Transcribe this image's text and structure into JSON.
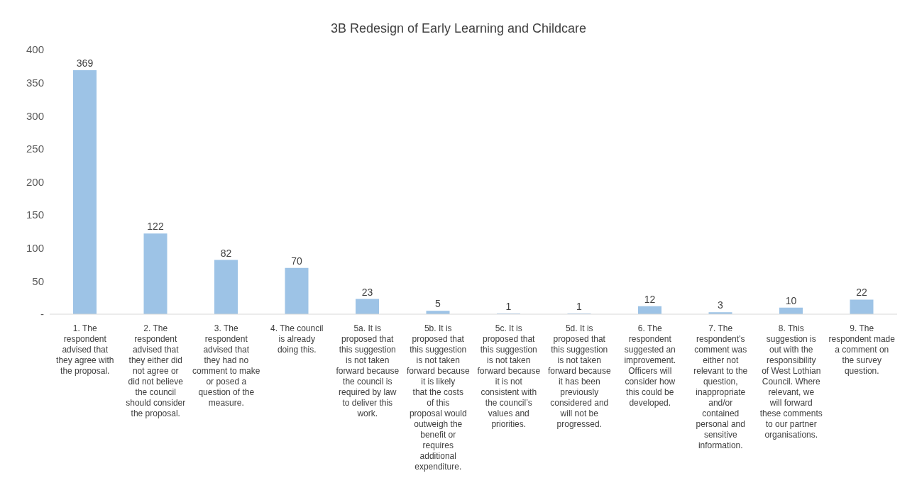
{
  "chart_data": {
    "type": "bar",
    "title": "3B Redesign of Early Learning and Childcare",
    "categories": [
      "1. The respondent advised that they agree with the proposal.",
      "2. The respondent advised that they either did not agree or did not believe the council should consider the proposal.",
      "3. The respondent advised that they had no comment to make or posed a question of the measure.",
      "4. The council is already doing this.",
      "5a. It is proposed that this suggestion is not taken forward because the council is required by law to deliver this work.",
      "5b. It is proposed that this suggestion is not taken forward because it is likely that the costs of this proposal would outweigh the benefit or requires additional expenditure.",
      "5c. It is proposed that this suggestion is not taken forward because it is not consistent with the council’s values and priorities.",
      "5d. It is proposed that this suggestion is not taken forward because it has been previously considered and will not be progressed.",
      "6. The respondent suggested an improvement. Officers will consider how this could be developed.",
      "7. The respondent's comment was either not relevant to the question, inappropriate and/or contained personal and sensitive information.",
      "8. This suggestion is out with the responsibility of West Lothian Council. Where relevant, we will forward these comments to our partner organisations.",
      "9. The respondent made a comment on the survey question."
    ],
    "values": [
      369,
      122,
      82,
      70,
      23,
      5,
      1,
      1,
      12,
      3,
      10,
      22
    ],
    "color": "#9dc3e6",
    "ylim": [
      0,
      400
    ],
    "yticks": [
      {
        "value": 0,
        "label": "-"
      },
      50,
      100,
      150,
      200,
      250,
      300,
      350,
      400
    ],
    "data_labels": true
  }
}
